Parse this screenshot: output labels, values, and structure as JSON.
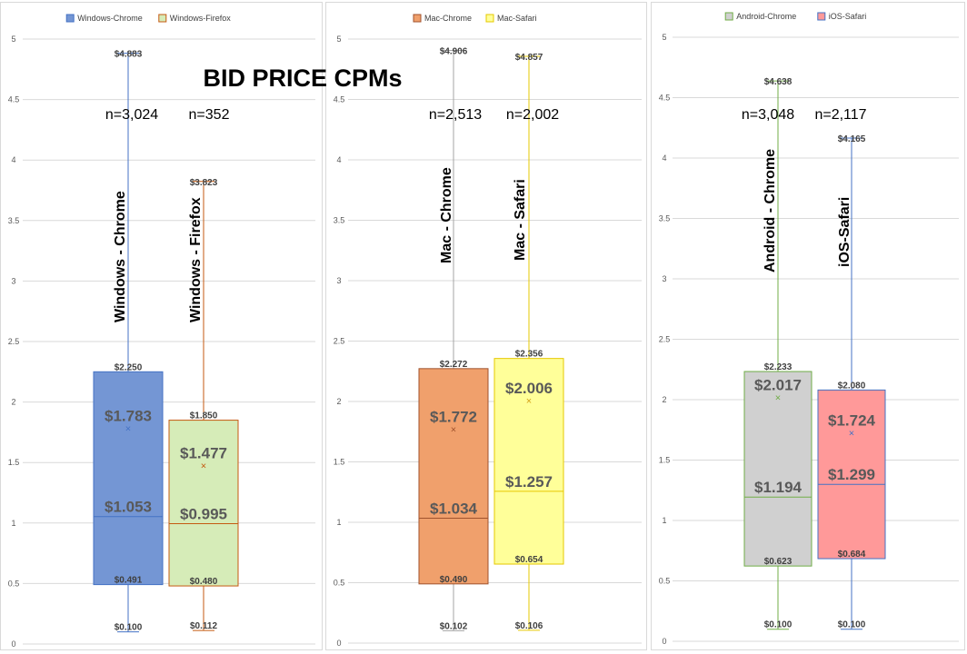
{
  "title": "BID PRICE CPMs",
  "y_ticks": [
    "0",
    "0.5",
    "1",
    "1.5",
    "2",
    "2.5",
    "3",
    "3.5",
    "4",
    "4.5",
    "5"
  ],
  "chart_data": [
    {
      "type": "box",
      "ylim": [
        0,
        5
      ],
      "legend": [
        "Windows-Chrome",
        "Windows-Firefox"
      ],
      "series": [
        {
          "name": "Windows-Chrome",
          "label": "Windows - Chrome",
          "n": "n=3,024",
          "min": 0.1,
          "q1": 0.491,
          "median": 1.053,
          "mean": 1.783,
          "q3": 2.25,
          "max": 4.883,
          "min_label": "$0.100",
          "q1_label": "$0.491",
          "median_label": "$1.053",
          "mean_label": "$1.783",
          "q3_label": "$2.250",
          "max_label": "$4.883",
          "fill": "#7496d4",
          "stroke": "#4472c4",
          "whisker": "#4472c4",
          "mean_mark": "#4472c4"
        },
        {
          "name": "Windows-Firefox",
          "label": "Windows - Firefox",
          "n": "n=352",
          "min": 0.112,
          "q1": 0.48,
          "median": 0.995,
          "mean": 1.477,
          "q3": 1.85,
          "max": 3.823,
          "min_label": "$0.112",
          "q1_label": "$0.480",
          "median_label": "$0.995",
          "mean_label": "$1.477",
          "q3_label": "$1.850",
          "max_label": "$3.823",
          "fill": "#d6ecb8",
          "stroke": "#c55a11",
          "whisker": "#c55a11",
          "mean_mark": "#c55a11"
        }
      ]
    },
    {
      "type": "box",
      "ylim": [
        0,
        5
      ],
      "legend": [
        "Mac-Chrome",
        "Mac-Safari"
      ],
      "series": [
        {
          "name": "Mac-Chrome",
          "label": "Mac - Chrome",
          "n": "n=2,513",
          "min": 0.102,
          "q1": 0.49,
          "median": 1.034,
          "mean": 1.772,
          "q3": 2.272,
          "max": 4.906,
          "min_label": "$0.102",
          "q1_label": "$0.490",
          "median_label": "$1.034",
          "mean_label": "$1.772",
          "q3_label": "$2.272",
          "max_label": "$4.906",
          "fill": "#f0a06c",
          "stroke": "#a0522d",
          "whisker": "#a5a5a5",
          "mean_mark": "#a0522d"
        },
        {
          "name": "Mac-Safari",
          "label": "Mac - Safari",
          "n": "n=2,002",
          "min": 0.106,
          "q1": 0.654,
          "median": 1.257,
          "mean": 2.006,
          "q3": 2.356,
          "max": 4.857,
          "min_label": "$0.106",
          "q1_label": "$0.654",
          "median_label": "$1.257",
          "mean_label": "$2.006",
          "q3_label": "$2.356",
          "max_label": "$4.857",
          "fill": "#ffff99",
          "stroke": "#e6c800",
          "whisker": "#e6c800",
          "mean_mark": "#d4a017"
        }
      ]
    },
    {
      "type": "box",
      "ylim": [
        0,
        5
      ],
      "legend": [
        "Android-Chrome",
        "iOS-Safari"
      ],
      "series": [
        {
          "name": "Android-Chrome",
          "label": "Android - Chrome",
          "n": "n=3,048",
          "min": 0.1,
          "q1": 0.623,
          "median": 1.194,
          "mean": 2.017,
          "q3": 2.233,
          "max": 4.638,
          "min_label": "$0.100",
          "q1_label": "$0.623",
          "median_label": "$1.194",
          "mean_label": "$2.017",
          "q3_label": "$2.233",
          "max_label": "$4.638",
          "fill": "#d0d0d0",
          "stroke": "#70ad47",
          "whisker": "#70ad47",
          "mean_mark": "#70ad47"
        },
        {
          "name": "iOS-Safari",
          "label": "iOS-Safari",
          "n": "n=2,117",
          "min": 0.1,
          "q1": 0.684,
          "median": 1.299,
          "mean": 1.724,
          "q3": 2.08,
          "max": 4.165,
          "min_label": "$0.100",
          "q1_label": "$0.684",
          "median_label": "$1.299",
          "mean_label": "$1.724",
          "q3_label": "$2.080",
          "max_label": "$4.165",
          "fill": "#ff9999",
          "stroke": "#4472c4",
          "whisker": "#4472c4",
          "mean_mark": "#4472c4"
        }
      ]
    }
  ]
}
